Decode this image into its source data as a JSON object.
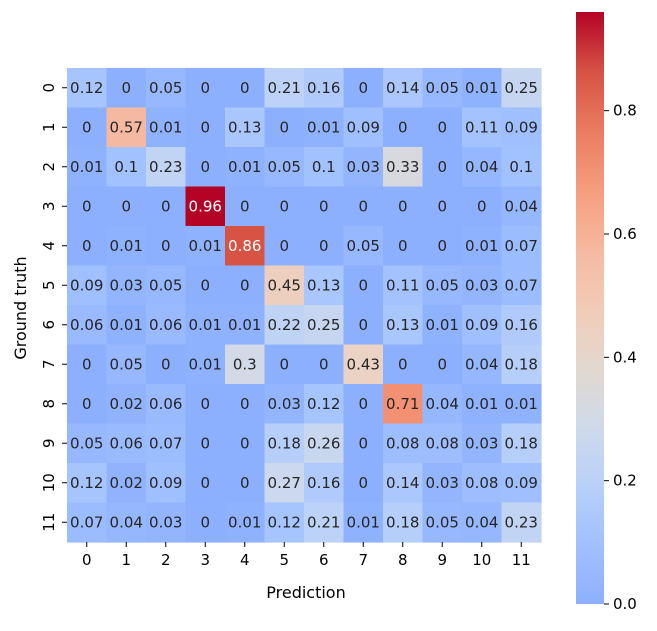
{
  "chart_data": {
    "type": "heatmap",
    "title": "",
    "xlabel": "Prediction",
    "ylabel": "Ground truth",
    "x_categories": [
      "0",
      "1",
      "2",
      "3",
      "4",
      "5",
      "6",
      "7",
      "8",
      "9",
      "10",
      "11"
    ],
    "y_categories": [
      "0",
      "1",
      "2",
      "3",
      "4",
      "5",
      "6",
      "7",
      "8",
      "9",
      "10",
      "11"
    ],
    "values": [
      [
        0.12,
        0,
        0.05,
        0,
        0,
        0.21,
        0.16,
        0,
        0.14,
        0.05,
        0.01,
        0.25
      ],
      [
        0,
        0.57,
        0.01,
        0,
        0.13,
        0,
        0.01,
        0.09,
        0,
        0,
        0.11,
        0.09
      ],
      [
        0.01,
        0.1,
        0.23,
        0,
        0.01,
        0.05,
        0.1,
        0.03,
        0.33,
        0,
        0.04,
        0.1
      ],
      [
        0,
        0,
        0,
        0.96,
        0,
        0,
        0,
        0,
        0,
        0,
        0,
        0.04
      ],
      [
        0,
        0.01,
        0,
        0.01,
        0.86,
        0,
        0,
        0.05,
        0,
        0,
        0.01,
        0.07
      ],
      [
        0.09,
        0.03,
        0.05,
        0,
        0,
        0.45,
        0.13,
        0,
        0.11,
        0.05,
        0.03,
        0.07
      ],
      [
        0.06,
        0.01,
        0.06,
        0.01,
        0.01,
        0.22,
        0.25,
        0,
        0.13,
        0.01,
        0.09,
        0.16
      ],
      [
        0,
        0.05,
        0,
        0.01,
        0.3,
        0,
        0,
        0.43,
        0,
        0,
        0.04,
        0.18
      ],
      [
        0,
        0.02,
        0.06,
        0,
        0,
        0.03,
        0.12,
        0,
        0.71,
        0.04,
        0.01,
        0.01
      ],
      [
        0.05,
        0.06,
        0.07,
        0,
        0,
        0.18,
        0.26,
        0,
        0.08,
        0.08,
        0.03,
        0.18
      ],
      [
        0.12,
        0.02,
        0.09,
        0,
        0,
        0.27,
        0.16,
        0,
        0.14,
        0.03,
        0.08,
        0.09
      ],
      [
        0.07,
        0.04,
        0.03,
        0,
        0.01,
        0.12,
        0.21,
        0.01,
        0.18,
        0.05,
        0.04,
        0.23
      ]
    ],
    "colormap": "coolwarm",
    "vmin": 0,
    "vmax": 0.96,
    "colorbar_ticks": [
      "0.0",
      "0.2",
      "0.4",
      "0.6",
      "0.8"
    ],
    "colorbar_tick_values": [
      0.0,
      0.2,
      0.4,
      0.6,
      0.8
    ],
    "colors": {
      "low": "#8db0fe",
      "mid": "#dddcdc",
      "high": "#b40426",
      "annotation_text": "#262626"
    }
  }
}
